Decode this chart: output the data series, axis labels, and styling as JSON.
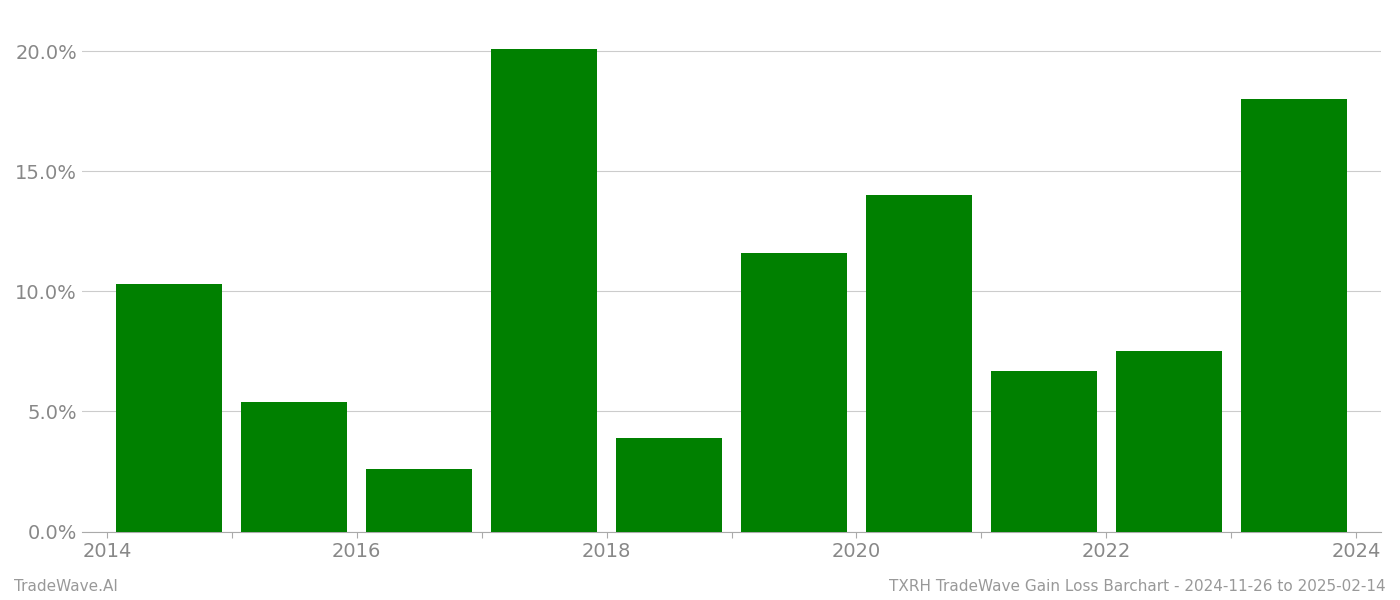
{
  "years": [
    2014,
    2015,
    2016,
    2017,
    2018,
    2019,
    2020,
    2021,
    2022,
    2023
  ],
  "values": [
    0.103,
    0.054,
    0.026,
    0.201,
    0.039,
    0.116,
    0.14,
    0.067,
    0.075,
    0.18
  ],
  "bar_color": "#008000",
  "background_color": "#ffffff",
  "ylabel_ticks": [
    0.0,
    0.05,
    0.1,
    0.15,
    0.2
  ],
  "ylim": [
    0.0,
    0.215
  ],
  "footer_left": "TradeWave.AI",
  "footer_right": "TXRH TradeWave Gain Loss Barchart - 2024-11-26 to 2025-02-14",
  "grid_color": "#cccccc",
  "tick_label_color": "#888888",
  "footer_color": "#999999",
  "tick_fontsize": 14,
  "footer_fontsize": 11,
  "x_tick_labels": [
    "2014",
    "",
    "2016",
    "",
    "2018",
    "",
    "2020",
    "",
    "2022",
    "",
    "2024"
  ],
  "x_tick_positions": [
    -0.5,
    0.5,
    1.5,
    2.5,
    3.5,
    4.5,
    5.5,
    6.5,
    7.5,
    8.5,
    9.5
  ]
}
